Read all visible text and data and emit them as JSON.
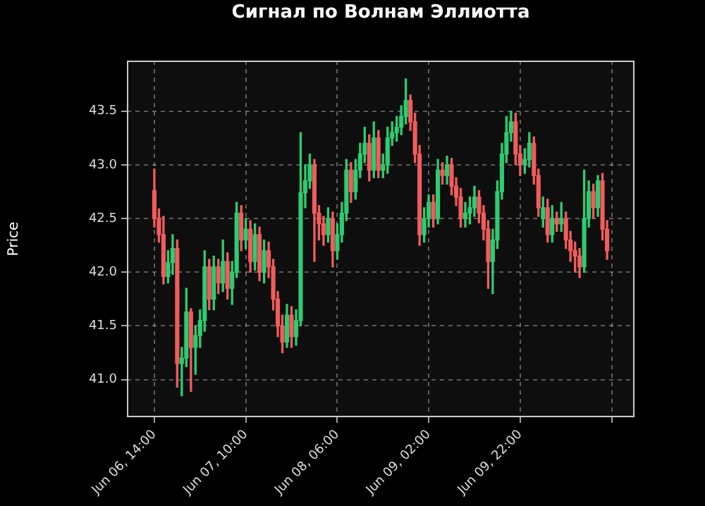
{
  "chart_data": {
    "type": "candlestick",
    "title": "Сигнал по Волнам Эллиотта",
    "ylabel": "Price",
    "colors": [
      "#f25c5c",
      "#f25c5c",
      "#f25c5c",
      "#2ecc71",
      "#2ecc71",
      "#f25c5c",
      "#2ecc71",
      "#2ecc71",
      "#f25c5c",
      "#2ecc71",
      "#2ecc71",
      "#2ecc71",
      "#f25c5c",
      "#2ecc71",
      "#f25c5c",
      "#2ecc71",
      "#f25c5c",
      "#2ecc71",
      "#2ecc71",
      "#f25c5c",
      "#2ecc71",
      "#f25c5c",
      "#2ecc71",
      "#f25c5c",
      "#2ecc71",
      "#f25c5c",
      "#f25c5c",
      "#f25c5c",
      "#f25c5c",
      "#2ecc71",
      "#f25c5c",
      "#2ecc71",
      "#2ecc71",
      "#2ecc71",
      "#2ecc71",
      "#f25c5c",
      "#f25c5c",
      "#f25c5c",
      "#2ecc71",
      "#f25c5c",
      "#2ecc71",
      "#2ecc71",
      "#2ecc71",
      "#f25c5c",
      "#2ecc71",
      "#2ecc71",
      "#2ecc71",
      "#f25c5c",
      "#2ecc71",
      "#f25c5c",
      "#2ecc71",
      "#2ecc71",
      "#2ecc71",
      "#2ecc71",
      "#2ecc71",
      "#2ecc71",
      "#f25c5c",
      "#f25c5c",
      "#f25c5c",
      "#2ecc71",
      "#2ecc71",
      "#f25c5c",
      "#2ecc71",
      "#f25c5c",
      "#2ecc71",
      "#f25c5c",
      "#f25c5c",
      "#f25c5c",
      "#2ecc71",
      "#2ecc71",
      "#2ecc71",
      "#f25c5c",
      "#f25c5c",
      "#f25c5c",
      "#2ecc71",
      "#2ecc71",
      "#2ecc71",
      "#2ecc71",
      "#2ecc71",
      "#f25c5c",
      "#f25c5c",
      "#2ecc71",
      "#2ecc71",
      "#f25c5c",
      "#f25c5c",
      "#2ecc71",
      "#f25c5c",
      "#2ecc71",
      "#f25c5c",
      "#2ecc71",
      "#f25c5c",
      "#f25c5c",
      "#f25c5c",
      "#f25c5c",
      "#2ecc71",
      "#2ecc71",
      "#f25c5c",
      "#2ecc71",
      "#f25c5c",
      "#f25c5c"
    ],
    "grid": true,
    "legend": false,
    "xlim": [
      "--06-06T08:00",
      "--06-10T23:00"
    ],
    "xticks": [
      {
        "value": "--06-06T14:00",
        "label": "Jun 06, 14:00"
      },
      {
        "value": "--06-07T10:00",
        "label": "Jun 07, 10:00"
      },
      {
        "value": "--06-08T06:00",
        "label": "Jun 08, 06:00"
      },
      {
        "value": "--06-09T02:00",
        "label": "Jun 09, 02:00"
      },
      {
        "value": "--06-09T22:00",
        "label": "Jun 09, 22:00"
      },
      {
        "value": "--06-10T18:00",
        "label": null
      }
    ],
    "ylim": [
      40.65,
      43.97
    ],
    "yticks": [
      {
        "value": 41,
        "label": "41.0"
      },
      {
        "value": 41.5,
        "label": "41.5"
      },
      {
        "value": 42,
        "label": "42.0"
      },
      {
        "value": 42.5,
        "label": "42.5"
      },
      {
        "value": 43,
        "label": "43.0"
      },
      {
        "value": 43.5,
        "label": "43.5"
      }
    ],
    "x": [
      "--06-06T14:00",
      "--06-06T15:00",
      "--06-06T16:00",
      "--06-06T17:00",
      "--06-06T18:00",
      "--06-06T19:00",
      "--06-06T20:00",
      "--06-06T21:00",
      "--06-06T22:00",
      "--06-06T23:00",
      "--06-07T00:00",
      "--06-07T01:00",
      "--06-07T02:00",
      "--06-07T03:00",
      "--06-07T04:00",
      "--06-07T05:00",
      "--06-07T06:00",
      "--06-07T07:00",
      "--06-07T08:00",
      "--06-07T09:00",
      "--06-07T10:00",
      "--06-07T11:00",
      "--06-07T12:00",
      "--06-07T13:00",
      "--06-07T14:00",
      "--06-07T15:00",
      "--06-07T16:00",
      "--06-07T17:00",
      "--06-07T18:00",
      "--06-07T19:00",
      "--06-07T20:00",
      "--06-07T21:00",
      "--06-07T22:00",
      "--06-07T23:00",
      "--06-08T00:00",
      "--06-08T01:00",
      "--06-08T02:00",
      "--06-08T03:00",
      "--06-08T04:00",
      "--06-08T05:00",
      "--06-08T06:00",
      "--06-08T07:00",
      "--06-08T08:00",
      "--06-08T09:00",
      "--06-08T10:00",
      "--06-08T11:00",
      "--06-08T12:00",
      "--06-08T13:00",
      "--06-08T14:00",
      "--06-08T15:00",
      "--06-08T16:00",
      "--06-08T17:00",
      "--06-08T18:00",
      "--06-08T19:00",
      "--06-08T20:00",
      "--06-08T21:00",
      "--06-08T22:00",
      "--06-08T23:00",
      "--06-09T00:00",
      "--06-09T01:00",
      "--06-09T02:00",
      "--06-09T03:00",
      "--06-09T04:00",
      "--06-09T05:00",
      "--06-09T06:00",
      "--06-09T07:00",
      "--06-09T08:00",
      "--06-09T09:00",
      "--06-09T10:00",
      "--06-09T11:00",
      "--06-09T12:00",
      "--06-09T13:00",
      "--06-09T14:00",
      "--06-09T15:00",
      "--06-09T16:00",
      "--06-09T17:00",
      "--06-09T18:00",
      "--06-09T19:00",
      "--06-09T20:00",
      "--06-09T21:00",
      "--06-09T22:00",
      "--06-09T23:00",
      "--06-10T00:00",
      "--06-10T01:00",
      "--06-10T02:00",
      "--06-10T03:00",
      "--06-10T04:00",
      "--06-10T05:00",
      "--06-10T06:00",
      "--06-10T07:00",
      "--06-10T08:00",
      "--06-10T09:00",
      "--06-10T10:00",
      "--06-10T11:00",
      "--06-10T12:00",
      "--06-10T13:00",
      "--06-10T14:00",
      "--06-10T15:00",
      "--06-10T16:00",
      "--06-10T17:00"
    ],
    "ohlc": [
      [
        42.76,
        42.96,
        42.42,
        42.5
      ],
      [
        42.5,
        42.59,
        42.28,
        42.35
      ],
      [
        42.35,
        42.52,
        41.89,
        41.96
      ],
      [
        41.96,
        42.2,
        41.9,
        42.09
      ],
      [
        42.09,
        42.35,
        41.98,
        42.22
      ],
      [
        42.22,
        42.3,
        40.93,
        41.15
      ],
      [
        41.15,
        41.3,
        40.85,
        41.2
      ],
      [
        41.2,
        41.85,
        41.12,
        41.63
      ],
      [
        41.63,
        41.66,
        40.89,
        41.3
      ],
      [
        41.3,
        41.5,
        41.05,
        41.41
      ],
      [
        41.41,
        41.65,
        41.3,
        41.55
      ],
      [
        41.55,
        42.2,
        41.45,
        42.05
      ],
      [
        42.05,
        42.12,
        41.65,
        41.75
      ],
      [
        41.75,
        42.15,
        41.65,
        42.05
      ],
      [
        42.05,
        42.12,
        41.8,
        41.9
      ],
      [
        41.9,
        42.3,
        41.82,
        42.1
      ],
      [
        42.1,
        42.18,
        41.75,
        41.85
      ],
      [
        41.85,
        42.1,
        41.7,
        42.0
      ],
      [
        42.0,
        42.65,
        41.95,
        42.55
      ],
      [
        42.55,
        42.62,
        42.2,
        42.3
      ],
      [
        42.3,
        42.5,
        42.22,
        42.4
      ],
      [
        42.4,
        42.48,
        42.0,
        42.1
      ],
      [
        42.1,
        42.45,
        42.02,
        42.35
      ],
      [
        42.35,
        42.42,
        41.92,
        42.0
      ],
      [
        42.0,
        42.3,
        41.9,
        42.2
      ],
      [
        42.2,
        42.28,
        41.95,
        42.05
      ],
      [
        42.05,
        42.12,
        41.65,
        41.75
      ],
      [
        41.75,
        41.82,
        41.4,
        41.5
      ],
      [
        41.5,
        41.6,
        41.25,
        41.35
      ],
      [
        41.35,
        41.7,
        41.3,
        41.6
      ],
      [
        41.6,
        41.68,
        41.3,
        41.4
      ],
      [
        41.4,
        41.65,
        41.32,
        41.55
      ],
      [
        41.55,
        43.3,
        41.5,
        42.74
      ],
      [
        42.74,
        43.0,
        42.6,
        42.85
      ],
      [
        42.85,
        43.1,
        42.78,
        43.0
      ],
      [
        43.0,
        43.05,
        42.1,
        42.55
      ],
      [
        42.55,
        42.62,
        42.3,
        42.45
      ],
      [
        42.45,
        42.52,
        42.25,
        42.35
      ],
      [
        42.35,
        42.6,
        42.28,
        42.5
      ],
      [
        42.5,
        42.56,
        42.05,
        42.2
      ],
      [
        42.2,
        42.45,
        42.12,
        42.35
      ],
      [
        42.35,
        42.65,
        42.28,
        42.55
      ],
      [
        42.55,
        43.05,
        42.48,
        42.95
      ],
      [
        42.95,
        43.02,
        42.65,
        42.75
      ],
      [
        42.75,
        43.05,
        42.68,
        42.95
      ],
      [
        42.95,
        43.2,
        42.88,
        43.1
      ],
      [
        43.1,
        43.35,
        43.02,
        43.2
      ],
      [
        43.2,
        43.28,
        42.85,
        42.95
      ],
      [
        42.95,
        43.4,
        42.88,
        43.25
      ],
      [
        43.25,
        43.32,
        42.88,
        42.95
      ],
      [
        42.95,
        43.1,
        42.88,
        43.0
      ],
      [
        43.0,
        43.35,
        42.92,
        43.25
      ],
      [
        43.25,
        43.4,
        43.18,
        43.3
      ],
      [
        43.3,
        43.45,
        43.22,
        43.35
      ],
      [
        43.35,
        43.55,
        43.28,
        43.45
      ],
      [
        43.45,
        43.8,
        43.38,
        43.6
      ],
      [
        43.6,
        43.65,
        43.32,
        43.4
      ],
      [
        43.4,
        43.48,
        43.02,
        43.1
      ],
      [
        43.1,
        43.18,
        42.25,
        42.35
      ],
      [
        42.35,
        42.6,
        42.28,
        42.5
      ],
      [
        42.5,
        42.72,
        42.42,
        42.65
      ],
      [
        42.65,
        42.72,
        42.42,
        42.5
      ],
      [
        42.5,
        43.05,
        42.45,
        42.95
      ],
      [
        42.95,
        43.02,
        42.82,
        42.9
      ],
      [
        42.9,
        43.08,
        42.82,
        43.0
      ],
      [
        43.0,
        43.06,
        42.72,
        42.8
      ],
      [
        42.8,
        42.88,
        42.62,
        42.7
      ],
      [
        42.7,
        42.78,
        42.42,
        42.5
      ],
      [
        42.5,
        42.65,
        42.42,
        42.55
      ],
      [
        42.55,
        42.7,
        42.45,
        42.6
      ],
      [
        42.6,
        42.8,
        42.52,
        42.7
      ],
      [
        42.7,
        42.76,
        42.46,
        42.55
      ],
      [
        42.55,
        42.62,
        42.3,
        42.4
      ],
      [
        42.4,
        42.48,
        41.85,
        42.1
      ],
      [
        42.1,
        42.4,
        41.8,
        42.3
      ],
      [
        42.3,
        42.85,
        42.22,
        42.75
      ],
      [
        42.75,
        43.2,
        42.68,
        43.1
      ],
      [
        43.1,
        43.45,
        43.02,
        43.3
      ],
      [
        43.3,
        43.5,
        43.22,
        43.4
      ],
      [
        43.4,
        43.48,
        43.0,
        43.1
      ],
      [
        43.1,
        43.18,
        42.9,
        43.0
      ],
      [
        43.0,
        43.15,
        42.92,
        43.05
      ],
      [
        43.05,
        43.3,
        42.98,
        43.2
      ],
      [
        43.2,
        43.26,
        42.82,
        42.9
      ],
      [
        42.9,
        42.96,
        42.52,
        42.6
      ],
      [
        42.5,
        42.7,
        42.42,
        42.6
      ],
      [
        42.6,
        42.68,
        42.28,
        42.35
      ],
      [
        42.35,
        42.62,
        42.28,
        42.5
      ],
      [
        42.5,
        42.56,
        42.38,
        42.45
      ],
      [
        42.45,
        42.65,
        42.38,
        42.5
      ],
      [
        42.5,
        42.56,
        42.22,
        42.3
      ],
      [
        42.3,
        42.38,
        42.1,
        42.2
      ],
      [
        42.2,
        42.28,
        42.0,
        42.15
      ],
      [
        42.15,
        42.22,
        41.95,
        42.05
      ],
      [
        42.05,
        42.95,
        42.0,
        42.5
      ],
      [
        42.5,
        42.85,
        42.42,
        42.75
      ],
      [
        42.75,
        42.82,
        42.5,
        42.6
      ],
      [
        42.6,
        42.9,
        42.52,
        42.85
      ],
      [
        42.85,
        42.92,
        42.3,
        42.4
      ],
      [
        42.4,
        42.48,
        42.12,
        42.2
      ]
    ]
  }
}
